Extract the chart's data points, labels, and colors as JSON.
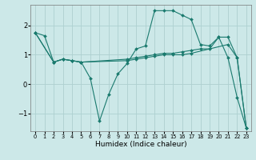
{
  "xlabel": "Humidex (Indice chaleur)",
  "bg_color": "#cce8e8",
  "line_color": "#1a7a6e",
  "grid_color": "#aed0d0",
  "xlim": [
    -0.5,
    23.5
  ],
  "ylim": [
    -1.6,
    2.7
  ],
  "yticks": [
    -1,
    0,
    1,
    2
  ],
  "xticks": [
    0,
    1,
    2,
    3,
    4,
    5,
    6,
    7,
    8,
    9,
    10,
    11,
    12,
    13,
    14,
    15,
    16,
    17,
    18,
    19,
    20,
    21,
    22,
    23
  ],
  "lines": [
    {
      "x": [
        0,
        1,
        2,
        3,
        4,
        5,
        6,
        7,
        8,
        9,
        10,
        11,
        12,
        13,
        14,
        15,
        16,
        17,
        18,
        19,
        20,
        21,
        22,
        23
      ],
      "y": [
        1.75,
        1.65,
        0.75,
        0.85,
        0.8,
        0.75,
        0.2,
        -1.25,
        -0.35,
        0.35,
        0.7,
        1.2,
        1.3,
        2.5,
        2.5,
        2.5,
        2.35,
        2.2,
        1.35,
        1.3,
        1.6,
        0.9,
        -0.45,
        -1.5
      ]
    },
    {
      "x": [
        0,
        2,
        3,
        4,
        5,
        10,
        11,
        12,
        13,
        14,
        15,
        16,
        17,
        18,
        19,
        20,
        21,
        22,
        23
      ],
      "y": [
        1.75,
        0.75,
        0.85,
        0.8,
        0.75,
        0.85,
        0.9,
        0.95,
        1.0,
        1.05,
        1.05,
        1.1,
        1.15,
        1.2,
        1.2,
        1.6,
        1.6,
        0.9,
        -1.5
      ]
    },
    {
      "x": [
        0,
        2,
        3,
        4,
        5,
        10,
        11,
        12,
        13,
        14,
        15,
        16,
        17,
        21,
        22,
        23
      ],
      "y": [
        1.75,
        0.75,
        0.85,
        0.8,
        0.75,
        0.8,
        0.85,
        0.9,
        0.95,
        1.0,
        1.0,
        1.0,
        1.05,
        1.35,
        0.9,
        -1.5
      ]
    }
  ]
}
